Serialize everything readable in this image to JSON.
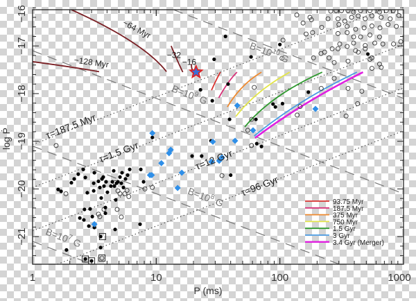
{
  "chart_data": {
    "type": "scatter",
    "xlabel": "P (ms)",
    "ylabel": "log Ṗ",
    "xscale": "log",
    "xlim": [
      1,
      1000
    ],
    "ylim": [
      -21.58,
      -16.24
    ],
    "xticks": [
      "1",
      "10",
      "100",
      "1000"
    ],
    "yticks": [
      "−16",
      "−17",
      "−18",
      "−19",
      "−20",
      "−21"
    ],
    "grid": false,
    "legend_position": "bottom-right",
    "colors": {
      "tracks_past": "#7a1f24",
      "filled": "#000000",
      "open": "#333333",
      "diamond": "#2f8fe8",
      "star_fill": "#3a6fd8",
      "star_edge": "#e02020",
      "bfield": "#777777",
      "tau": "#444444"
    },
    "b_field_lines": [
      {
        "label": "B=10",
        "exp": "10",
        "unit": " G",
        "logB": 10
      },
      {
        "label": "B=10",
        "exp": "9",
        "unit": " G",
        "logB": 9
      },
      {
        "label": "B=10",
        "exp": "8",
        "unit": " G",
        "logB": 8
      },
      {
        "label": "B=10",
        "exp": "7",
        "unit": " G",
        "logB": 7
      }
    ],
    "age_lines": [
      {
        "label": "τ=187.5 Myr",
        "offset": -19.07
      },
      {
        "label": "τ=1.5 Gyr",
        "offset": -19.97
      },
      {
        "label": "τ=12 Gyr",
        "offset": -20.88
      },
      {
        "label": "τ=96 Gyr",
        "offset": -21.78
      }
    ],
    "past_tracks": [
      {
        "label": "−64 Myr",
        "points": [
          [
            2.06,
            -16.24
          ],
          [
            6.3,
            -16.91
          ],
          [
            12.1,
            -17.54
          ]
        ]
      },
      {
        "label": "−128 Myr",
        "points": [
          [
            1.0,
            -17.33
          ],
          [
            2.0,
            -17.44
          ],
          [
            3.45,
            -17.54
          ]
        ]
      },
      {
        "label": "−32",
        "points": [
          [
            13.2,
            -17.0
          ],
          [
            14.8,
            -17.3
          ],
          [
            16.4,
            -17.55
          ]
        ]
      },
      {
        "label": "−16",
        "points": [
          [
            19.3,
            -17.38
          ],
          [
            19.6,
            -17.5
          ],
          [
            21.0,
            -17.55
          ]
        ]
      }
    ],
    "star": [
      21.0,
      -17.55
    ],
    "series": [
      {
        "name": "93.75 Myr",
        "color": "#d8322f",
        "points": [
          [
            28,
            -17.93
          ],
          [
            30.5,
            -17.72
          ],
          [
            33,
            -17.55
          ]
        ]
      },
      {
        "name": "187.5 Myr",
        "color": "#d8337a",
        "points": [
          [
            32,
            -18.09
          ],
          [
            38,
            -17.78
          ],
          [
            45,
            -17.55
          ]
        ]
      },
      {
        "name": "375 Myr",
        "color": "#ef8a2f",
        "points": [
          [
            37.6,
            -18.28
          ],
          [
            50,
            -17.86
          ],
          [
            71,
            -17.55
          ]
        ]
      },
      {
        "name": "750 Myr",
        "color": "#e3e54a",
        "points": [
          [
            44,
            -18.48
          ],
          [
            68,
            -17.98
          ],
          [
            120,
            -17.55
          ]
        ]
      },
      {
        "name": "1.5 Gyr",
        "color": "#2f9a2f",
        "points": [
          [
            52,
            -18.7
          ],
          [
            95,
            -18.08
          ],
          [
            220,
            -17.55
          ]
        ]
      },
      {
        "name": "3 Gyr",
        "color": "#4a9be3",
        "points": [
          [
            62,
            -18.89
          ],
          [
            150,
            -18.18
          ],
          [
            420,
            -17.55
          ]
        ]
      },
      {
        "name": "3.4 Gyr (Merger)",
        "color": "#e020e0",
        "points": [
          [
            63,
            -18.93
          ],
          [
            160,
            -18.22
          ],
          [
            470,
            -17.55
          ]
        ]
      }
    ],
    "filled_points": [
      [
        1.61,
        -20.01
      ],
      [
        1.7,
        -20.05
      ],
      [
        2.06,
        -19.87
      ],
      [
        2.17,
        -19.79
      ],
      [
        2.34,
        -19.69
      ],
      [
        2.57,
        -19.59
      ],
      [
        2.67,
        -19.76
      ],
      [
        2.77,
        -20.08
      ],
      [
        3.12,
        -20.04
      ],
      [
        3.16,
        -19.66
      ],
      [
        3.41,
        -19.84
      ],
      [
        3.12,
        -19.88
      ],
      [
        3.64,
        -19.79
      ],
      [
        3.5,
        -19.97
      ],
      [
        3.59,
        -20.19
      ],
      [
        3.73,
        -19.75
      ],
      [
        3.78,
        -19.94
      ],
      [
        3.93,
        -19.85
      ],
      [
        4.03,
        -20.07
      ],
      [
        4.3,
        -19.94
      ],
      [
        4.42,
        -19.85
      ],
      [
        4.59,
        -19.94
      ],
      [
        4.77,
        -19.88
      ],
      [
        4.9,
        -19.85
      ],
      [
        5.09,
        -19.75
      ],
      [
        5.29,
        -19.66
      ],
      [
        5.22,
        -19.88
      ],
      [
        5.43,
        -19.97
      ],
      [
        5.64,
        -19.79
      ],
      [
        5.87,
        -19.71
      ],
      [
        6.1,
        -19.59
      ],
      [
        4.53,
        -19.62
      ],
      [
        3.88,
        -20.51
      ],
      [
        4.71,
        -20.23
      ],
      [
        3.88,
        -20.39
      ],
      [
        3.04,
        -20.58
      ],
      [
        2.92,
        -20.42
      ],
      [
        2.63,
        -20.43
      ],
      [
        2.41,
        -20.61
      ],
      [
        2.6,
        -20.65
      ],
      [
        2.85,
        -20.78
      ],
      [
        3.16,
        -20.81
      ],
      [
        3.55,
        -21.0
      ],
      [
        3.55,
        -21.23
      ],
      [
        1.88,
        -21.28
      ],
      [
        2.67,
        -21.47
      ],
      [
        3.0,
        -21.51
      ],
      [
        4.65,
        -20.85
      ],
      [
        7.4,
        -20.74
      ],
      [
        7.5,
        -19.59
      ],
      [
        7.9,
        -19.85
      ],
      [
        9.3,
        -18.92
      ],
      [
        19.5,
        -19.31
      ],
      [
        23.3,
        -19.31
      ],
      [
        27.7,
        -18.99
      ],
      [
        29.4,
        -17.28
      ],
      [
        22.8,
        -17.92
      ],
      [
        36.3,
        -16.8
      ],
      [
        58.5,
        -17.23
      ],
      [
        28.4,
        -18.15
      ],
      [
        38.1,
        -17.8
      ],
      [
        39.2,
        -18.54
      ],
      [
        64,
        -18.54
      ],
      [
        88,
        -18.22
      ],
      [
        92,
        -18.28
      ],
      [
        105,
        -18.21
      ],
      [
        170,
        -17.97
      ],
      [
        65,
        -19.05
      ],
      [
        100,
        -16.97
      ],
      [
        515,
        -17.17
      ],
      [
        71,
        -19.11
      ],
      [
        40,
        -19.71
      ]
    ],
    "open_points": [
      [
        1.86,
        -20.1
      ],
      [
        4.65,
        -19.87
      ],
      [
        4.9,
        -20.04
      ],
      [
        5.09,
        -20.1
      ],
      [
        5.57,
        -20.1
      ],
      [
        5.8,
        -20.03
      ],
      [
        6.0,
        -20.16
      ],
      [
        3.78,
        -20.43
      ],
      [
        4.83,
        -20.43
      ],
      [
        5.22,
        -20.59
      ],
      [
        3.41,
        -20.53
      ],
      [
        3.5,
        -20.58
      ],
      [
        8.1,
        -20.0
      ],
      [
        9.3,
        -19.97
      ],
      [
        59,
        -18.54
      ],
      [
        55,
        -18.77
      ],
      [
        59,
        -19.09
      ],
      [
        62,
        -17.87
      ],
      [
        216,
        -17.89
      ],
      [
        138,
        -18.45
      ],
      [
        146,
        -18.27
      ],
      [
        275,
        -17.68
      ],
      [
        356,
        -17.89
      ],
      [
        343,
        -18.47
      ],
      [
        425,
        -18.21
      ],
      [
        460,
        -17.95
      ],
      [
        104,
        -17.26
      ],
      [
        106,
        -16.88
      ],
      [
        1.55,
        -19.09
      ],
      [
        34,
        -19.72
      ],
      [
        137,
        -16.35
      ],
      [
        154,
        -16.52
      ],
      [
        175,
        -16.4
      ],
      [
        180,
        -16.45
      ],
      [
        163,
        -16.75
      ],
      [
        184,
        -16.72
      ],
      [
        218,
        -16.61
      ],
      [
        245,
        -16.43
      ],
      [
        258,
        -16.27
      ],
      [
        285,
        -16.26
      ],
      [
        315,
        -16.26
      ],
      [
        356,
        -16.26
      ],
      [
        395,
        -16.29
      ],
      [
        450,
        -16.26
      ],
      [
        535,
        -16.26
      ],
      [
        640,
        -16.29
      ],
      [
        725,
        -16.26
      ],
      [
        825,
        -16.26
      ],
      [
        295,
        -16.43
      ],
      [
        335,
        -16.48
      ],
      [
        380,
        -16.4
      ],
      [
        430,
        -16.37
      ],
      [
        490,
        -16.43
      ],
      [
        555,
        -16.37
      ],
      [
        660,
        -16.4
      ],
      [
        780,
        -16.43
      ],
      [
        915,
        -16.36
      ],
      [
        300,
        -16.55
      ],
      [
        350,
        -16.59
      ],
      [
        410,
        -16.65
      ],
      [
        480,
        -16.62
      ],
      [
        555,
        -16.58
      ],
      [
        645,
        -16.62
      ],
      [
        750,
        -16.55
      ],
      [
        875,
        -16.59
      ],
      [
        295,
        -16.74
      ],
      [
        350,
        -16.72
      ],
      [
        395,
        -16.81
      ],
      [
        450,
        -16.81
      ],
      [
        535,
        -16.77
      ],
      [
        640,
        -16.81
      ],
      [
        680,
        -16.96
      ],
      [
        585,
        -16.94
      ],
      [
        490,
        -16.99
      ],
      [
        395,
        -16.94
      ],
      [
        305,
        -16.96
      ],
      [
        265,
        -17.06
      ],
      [
        215,
        -17.16
      ],
      [
        230,
        -17.13
      ],
      [
        295,
        -17.06
      ],
      [
        350,
        -17.01
      ],
      [
        410,
        -17.1
      ],
      [
        490,
        -17.06
      ],
      [
        555,
        -17.25
      ],
      [
        640,
        -17.38
      ],
      [
        660,
        -17.45
      ],
      [
        535,
        -17.28
      ],
      [
        356,
        -17.32
      ],
      [
        275,
        -17.35
      ],
      [
        250,
        -17.25
      ],
      [
        187,
        -17.25
      ],
      [
        830,
        -16.96
      ],
      [
        950,
        -16.91
      ],
      [
        555,
        -17.47
      ],
      [
        430,
        -17.13
      ],
      [
        3.64,
        -21.45
      ]
    ],
    "diamond_points": [
      [
        9.3,
        -18.83
      ],
      [
        13.1,
        -19.18
      ],
      [
        11.0,
        -19.46
      ],
      [
        8.9,
        -19.71
      ],
      [
        9.2,
        -19.71
      ],
      [
        16.1,
        -19.66
      ],
      [
        14.9,
        -19.98
      ],
      [
        12.7,
        -19.25
      ],
      [
        3.16,
        -20.74
      ],
      [
        45.2,
        -18.25
      ],
      [
        194,
        -18.32
      ],
      [
        60.7,
        -18.77
      ],
      [
        43.4,
        -18.99
      ],
      [
        28.7,
        -19.01
      ],
      [
        28.0,
        -19.43
      ],
      [
        34.0,
        -19.34
      ],
      [
        32.3,
        -19.41
      ]
    ],
    "boxed_points": [
      [
        3.68,
        -21.0
      ],
      [
        2.67,
        -21.47
      ],
      [
        3.0,
        -21.51
      ],
      [
        3.64,
        -21.45
      ]
    ]
  }
}
